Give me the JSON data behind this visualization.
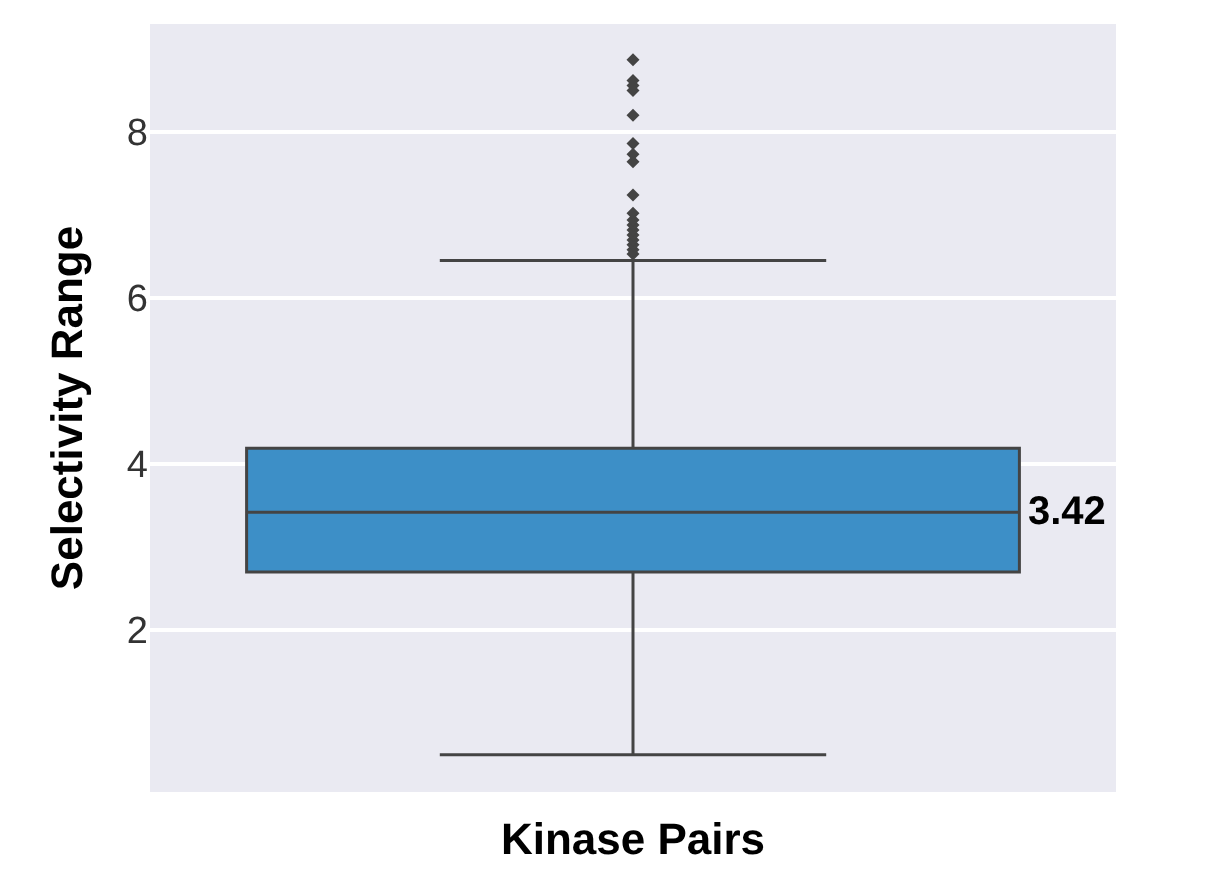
{
  "chart_data": {
    "type": "box",
    "xlabel": "Kinase Pairs",
    "ylabel": "Selectivity Range",
    "categories": [
      null
    ],
    "boxes": [
      {
        "low": 0.5,
        "q1": 2.7,
        "median": 3.42,
        "q3": 4.19,
        "high": 6.45,
        "outliers": [
          6.53,
          6.58,
          6.64,
          6.7,
          6.76,
          6.82,
          6.88,
          6.94,
          7.02,
          7.24,
          7.64,
          7.73,
          7.86,
          8.2,
          8.5,
          8.56,
          8.62,
          8.87
        ]
      }
    ],
    "color": "#3d8fc7",
    "ylim": [
      0.05,
      9.3
    ],
    "yticks": [
      2,
      4,
      6,
      8
    ],
    "grid": "y",
    "marker": "diamond",
    "annotations": [
      "3.42"
    ]
  }
}
